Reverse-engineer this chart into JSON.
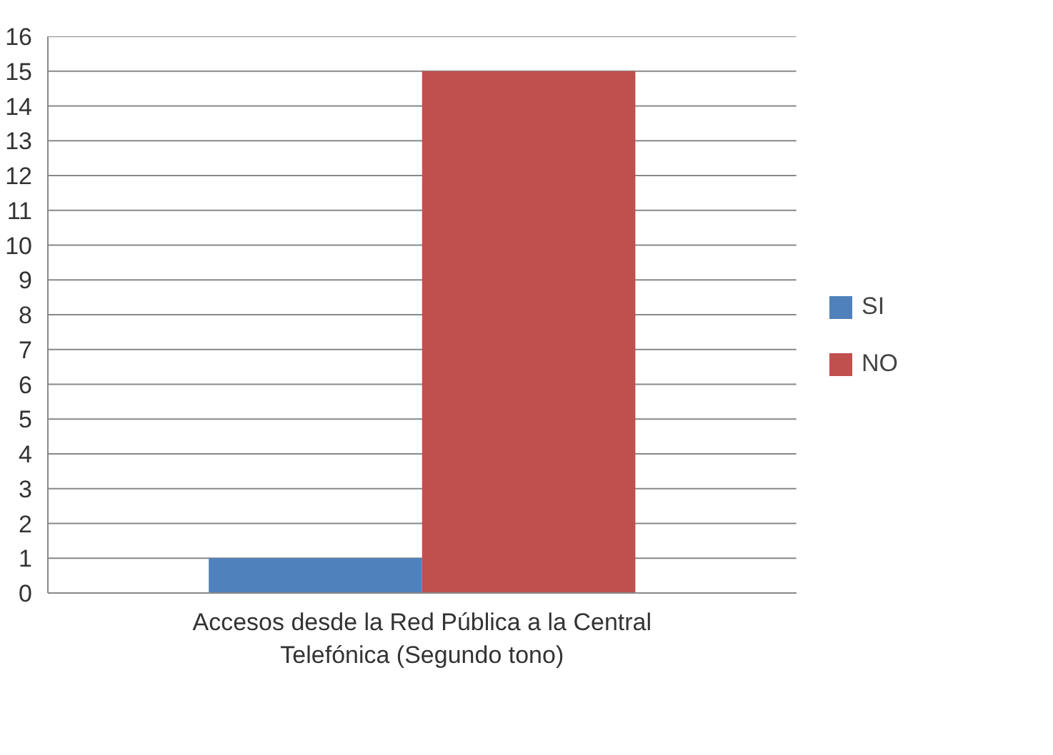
{
  "chart_data": {
    "type": "bar",
    "categories": [
      "Accesos desde la Red Pública a la Central Telefónica (Segundo tono)"
    ],
    "series": [
      {
        "name": "SI",
        "color": "#4f81bd",
        "values": [
          1
        ]
      },
      {
        "name": "NO",
        "color": "#c0504d",
        "values": [
          15
        ]
      }
    ],
    "ylim": [
      0,
      16
    ],
    "yticks": [
      0,
      1,
      2,
      3,
      4,
      5,
      6,
      7,
      8,
      9,
      10,
      11,
      12,
      13,
      14,
      15,
      16
    ],
    "grid": "y",
    "legend": "right"
  }
}
